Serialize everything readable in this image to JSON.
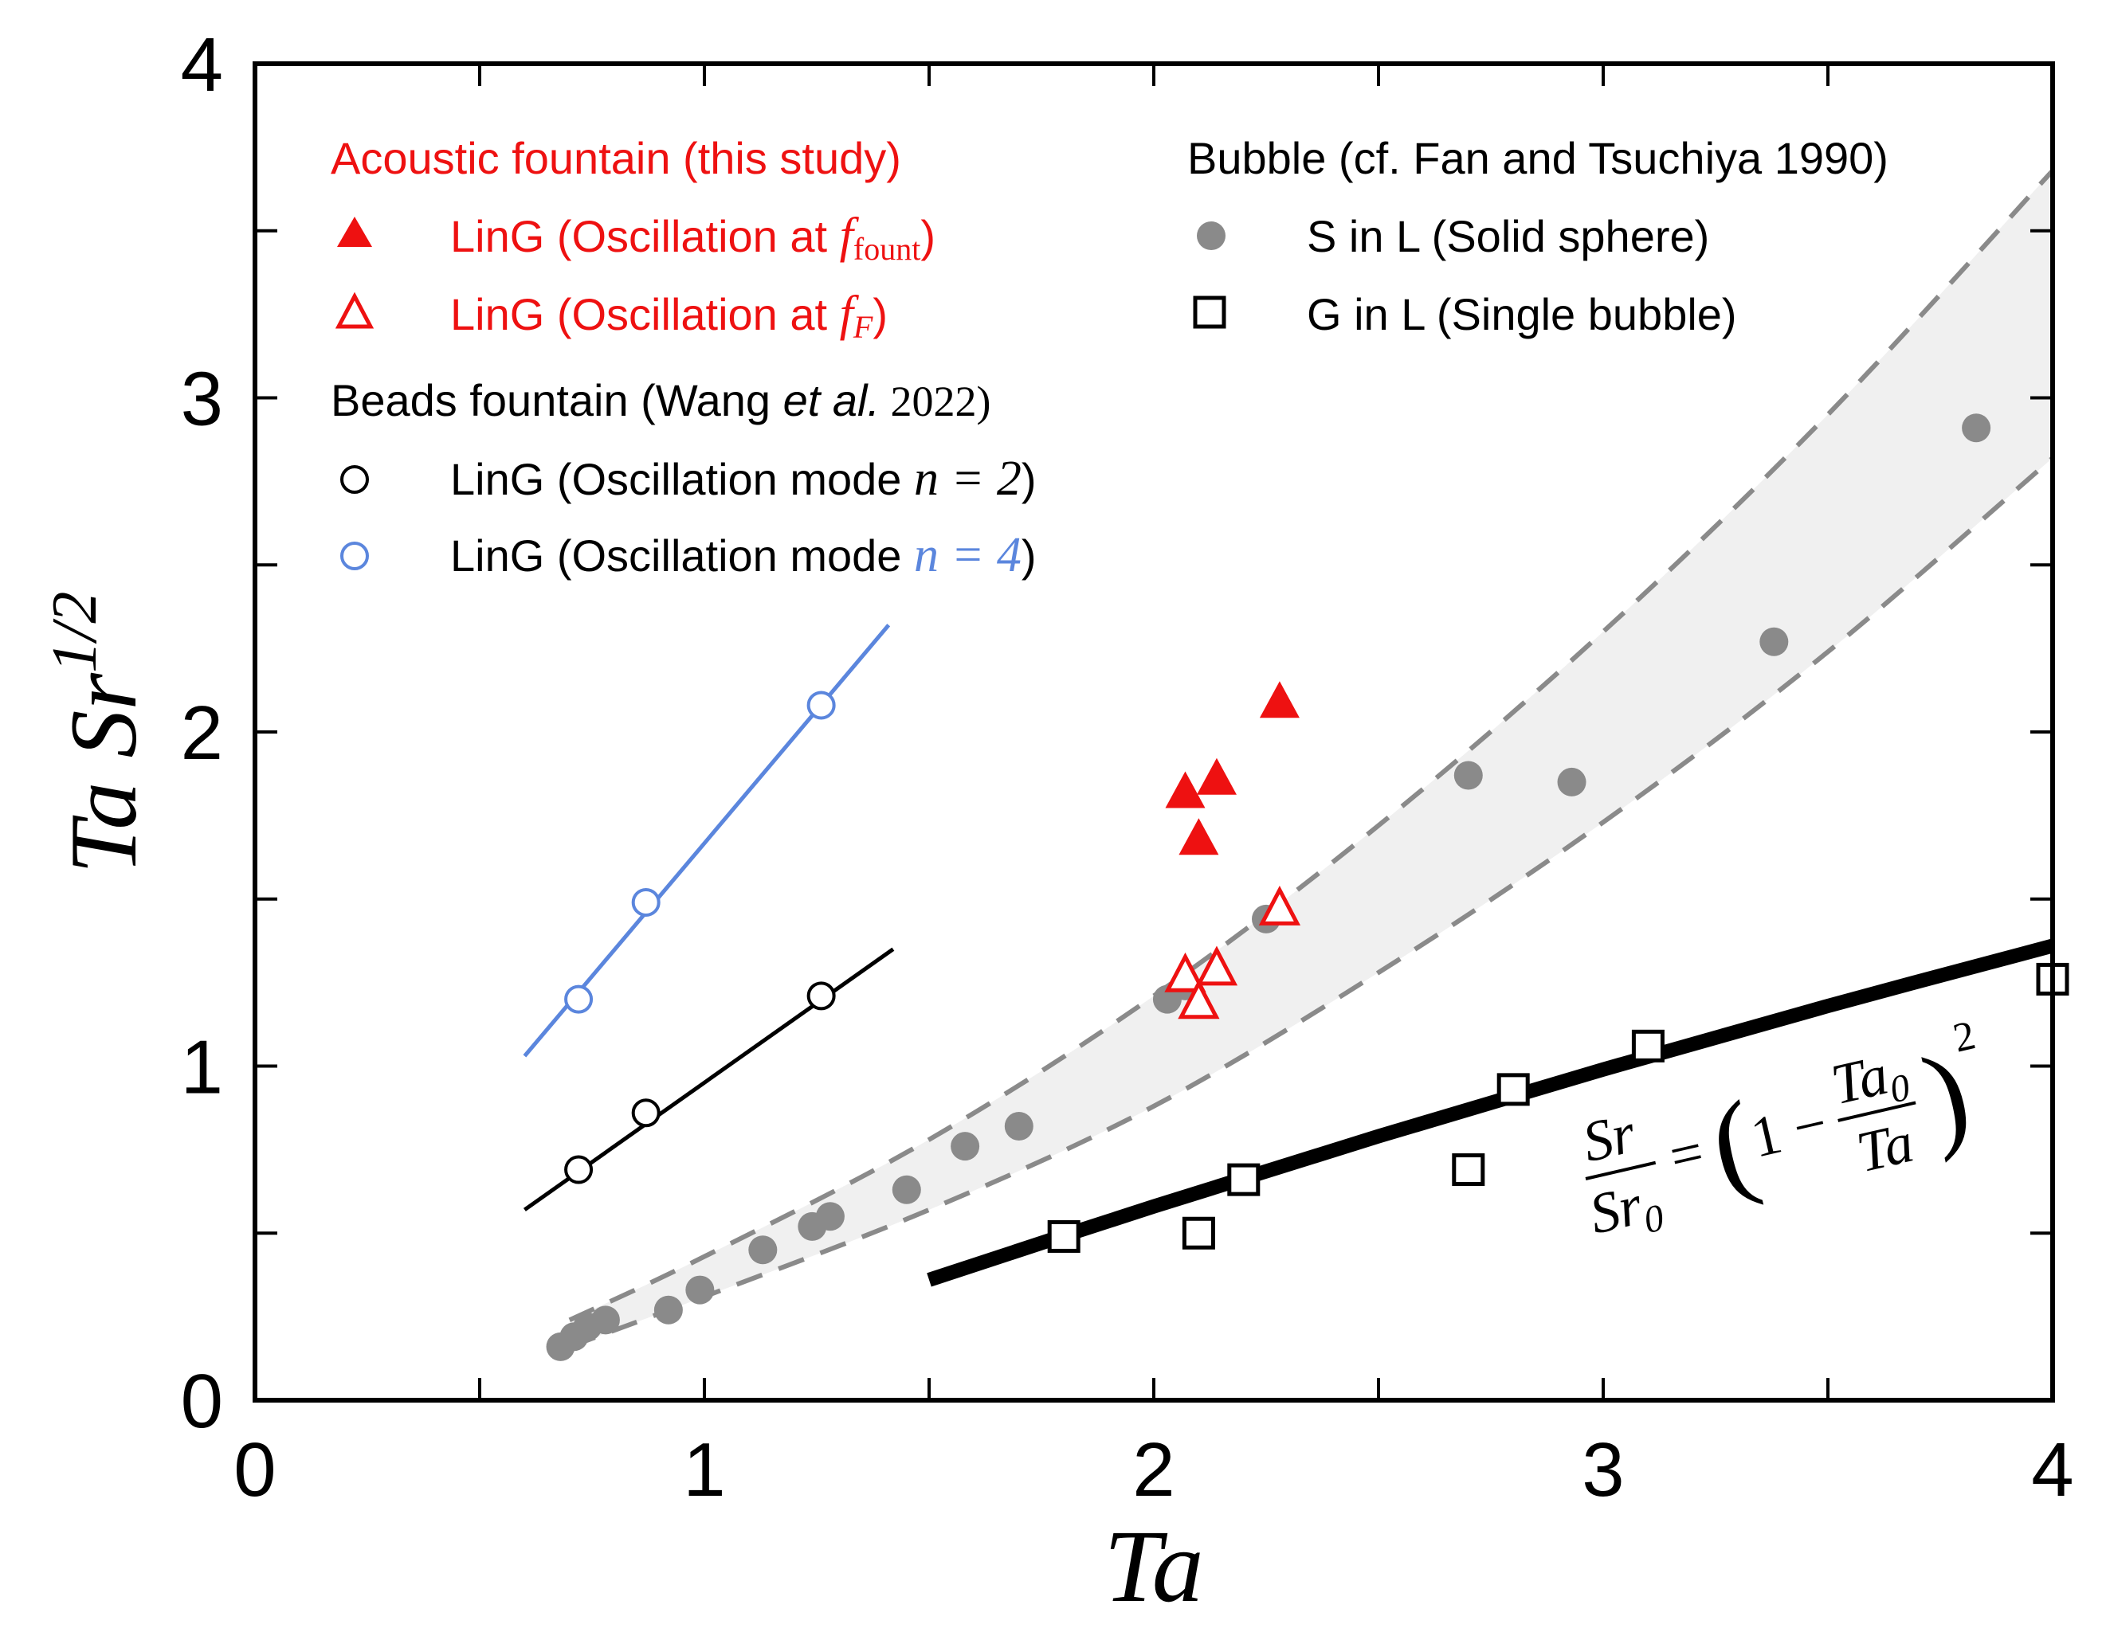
{
  "chart_data": {
    "type": "scatter",
    "title": "",
    "xlabel": "Ta",
    "ylabel": "Ta Sr^{1/2}",
    "ylabel_parts": {
      "base": "Ta Sr",
      "exponent": "1/2"
    },
    "xlim": [
      0,
      4
    ],
    "ylim": [
      0,
      4
    ],
    "x_ticks": [
      "0",
      "1",
      "2",
      "3",
      "4"
    ],
    "y_ticks": [
      "0",
      "1",
      "2",
      "3",
      "4"
    ],
    "grid": false,
    "colors": {
      "red": "#ee1111",
      "black": "#000000",
      "blue": "#5b86dd",
      "gray": "#8a8a8a",
      "band": "#f0f0f0"
    },
    "legend": {
      "placement": "top",
      "groups": [
        {
          "header": "Acoustic fountain (this study)",
          "header_color": "#ee1111",
          "entries": [
            {
              "marker": "filled-triangle",
              "color": "#ee1111",
              "label": "LinG (Oscillation at ",
              "math": "f",
              "sub": "fount",
              "close": ")"
            },
            {
              "marker": "open-triangle",
              "color": "#ee1111",
              "label": "LinG (Oscillation at ",
              "math": "f",
              "sub": "F",
              "close": ")"
            }
          ]
        },
        {
          "header": "Beads fountain (Wang ",
          "header_italic": "et al.",
          "header_year": " 2022)",
          "header_color": "#000000",
          "entries": [
            {
              "marker": "open-circle",
              "color": "#000000",
              "label": "LinG (Oscillation mode ",
              "math": "n = 2",
              "close": ")"
            },
            {
              "marker": "open-circle",
              "color": "#5b86dd",
              "label": "LinG (Oscillation mode ",
              "math": "n = 4",
              "close": ")"
            }
          ]
        },
        {
          "header": "Bubble (cf. Fan and Tsuchiya 1990)",
          "header_color": "#000000",
          "entries": [
            {
              "marker": "filled-circle",
              "color": "#8a8a8a",
              "label": "S in L (Solid sphere)"
            },
            {
              "marker": "open-square",
              "color": "#000000",
              "label": "G in L (Single bubble)"
            }
          ]
        }
      ]
    },
    "series": [
      {
        "name": "Acoustic fountain LinG (Oscillation at f_fount)",
        "marker": "filled-triangle",
        "color": "#ee1111",
        "x": [
          2.07,
          2.14,
          2.28,
          2.1
        ],
        "y": [
          1.82,
          1.86,
          2.09,
          1.68
        ]
      },
      {
        "name": "Acoustic fountain LinG (Oscillation at f_F)",
        "marker": "open-triangle",
        "color": "#ee1111",
        "x": [
          2.07,
          2.14,
          2.1,
          2.28
        ],
        "y": [
          1.27,
          1.29,
          1.19,
          1.47
        ]
      },
      {
        "name": "Beads fountain LinG (Oscillation mode n = 2)",
        "marker": "open-circle",
        "color": "#000000",
        "x": [
          0.72,
          0.87,
          1.26
        ],
        "y": [
          0.69,
          0.86,
          1.21
        ],
        "fit_line": {
          "x": [
            0.6,
            1.42
          ],
          "y": [
            0.57,
            1.35
          ]
        }
      },
      {
        "name": "Beads fountain LinG (Oscillation mode n = 4)",
        "marker": "open-circle",
        "color": "#5b86dd",
        "x": [
          0.72,
          0.87,
          1.26
        ],
        "y": [
          1.2,
          1.49,
          2.08
        ],
        "fit_line": {
          "x": [
            0.6,
            1.41
          ],
          "y": [
            1.03,
            2.32
          ]
        }
      },
      {
        "name": "S in L (Solid sphere)",
        "marker": "filled-circle",
        "color": "#8a8a8a",
        "x": [
          0.68,
          0.71,
          0.74,
          0.78,
          0.92,
          0.99,
          1.13,
          1.24,
          1.28,
          1.45,
          1.58,
          1.7,
          2.03,
          2.07,
          2.25,
          2.7,
          2.93,
          3.38,
          3.83
        ],
        "y": [
          0.16,
          0.19,
          0.22,
          0.24,
          0.27,
          0.33,
          0.45,
          0.52,
          0.55,
          0.63,
          0.76,
          0.82,
          1.2,
          1.24,
          1.44,
          1.87,
          1.85,
          2.27,
          2.91
        ]
      },
      {
        "name": "G in L (Single bubble)",
        "marker": "open-square",
        "color": "#000000",
        "x": [
          1.8,
          2.1,
          2.2,
          2.7,
          2.8,
          3.1,
          4.0
        ],
        "y": [
          0.49,
          0.5,
          0.66,
          0.69,
          0.93,
          1.06,
          1.26
        ]
      },
      {
        "name": "Upper dashed bound",
        "style": "dashed",
        "color": "#8a8a8a",
        "x": [
          0.7,
          1.0,
          1.5,
          2.0,
          2.5,
          3.0,
          3.5,
          4.0
        ],
        "y": [
          0.24,
          0.43,
          0.78,
          1.21,
          1.72,
          2.3,
          2.95,
          3.68
        ]
      },
      {
        "name": "Lower dashed bound",
        "style": "dashed",
        "color": "#8a8a8a",
        "x": [
          0.7,
          1.0,
          1.5,
          2.0,
          2.5,
          3.0,
          3.5,
          4.0
        ],
        "y": [
          0.16,
          0.31,
          0.57,
          0.88,
          1.28,
          1.73,
          2.24,
          2.82
        ]
      },
      {
        "name": "Sr/Sr0 = (1 - Ta0/Ta)^2",
        "style": "thick-solid",
        "color": "#000000",
        "x": [
          1.5,
          2.0,
          2.5,
          3.0,
          3.5,
          4.0
        ],
        "y": [
          0.36,
          0.58,
          0.79,
          0.99,
          1.18,
          1.36
        ]
      }
    ],
    "annotation": {
      "text": "Sr/Sr0 = (1 - Ta0/Ta)^2",
      "lhs_num": "Sr",
      "lhs_den": "Sr",
      "lhs_den_sub": "0",
      "eq": "=",
      "lparen": "(",
      "one_minus": "1 −",
      "rhs_num": "Ta",
      "rhs_num_sub": "0",
      "rhs_den": "Ta",
      "rparen": ")",
      "power": "2"
    }
  }
}
